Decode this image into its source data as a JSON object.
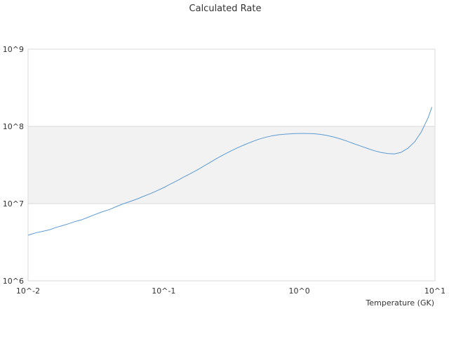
{
  "chart_data": {
    "type": "line",
    "title": "Calculated Rate",
    "xlabel": "Temperature (GK)",
    "ylabel": "",
    "xscale": "log",
    "yscale": "log",
    "xlim": [
      0.01,
      10
    ],
    "ylim": [
      1000000,
      1000000000
    ],
    "x_ticks": [
      "10^-2",
      "10^-1",
      "10^0",
      "10^1"
    ],
    "y_ticks": [
      "10^6",
      "10^7",
      "10^8",
      "10^9"
    ],
    "highlight_band": {
      "from": 10000000,
      "to": 100000000,
      "color": "#f2f2f2"
    },
    "line_color": "#5b9bd5",
    "series": [
      {
        "x": [
          0.01,
          0.0105,
          0.0115,
          0.013,
          0.0145,
          0.016,
          0.018,
          0.02,
          0.0225,
          0.025,
          0.028,
          0.031,
          0.035,
          0.04,
          0.045,
          0.05,
          0.056,
          0.063,
          0.07,
          0.08,
          0.09,
          0.1,
          0.11,
          0.125,
          0.14,
          0.16,
          0.18,
          0.2,
          0.225,
          0.25,
          0.28,
          0.32,
          0.36,
          0.4,
          0.45,
          0.5,
          0.56,
          0.63,
          0.71,
          0.8,
          0.9,
          1.0,
          1.12,
          1.26,
          1.41,
          1.58,
          1.78,
          2.0,
          2.24,
          2.5,
          2.8,
          3.16,
          3.55,
          4.0,
          4.47,
          5.0,
          5.62,
          6.31,
          7.08,
          7.94,
          8.91,
          9.5
        ],
        "y": [
          3900000.0,
          4000000.0,
          4200000.0,
          4400000.0,
          4600000.0,
          4900000.0,
          5200000.0,
          5500000.0,
          5900000.0,
          6200000.0,
          6700000.0,
          7200000.0,
          7800000.0,
          8400000.0,
          9200000.0,
          9900000.0,
          10600000.0,
          11400000.0,
          12300000.0,
          13500000.0,
          14800000.0,
          16100000.0,
          17600000.0,
          19700000.0,
          22000000.0,
          24800000.0,
          27800000.0,
          31000000.0,
          35000000.0,
          39000000.0,
          43500000.0,
          49000000.0,
          54000000.0,
          58500000.0,
          63500000.0,
          68000000.0,
          72000000.0,
          75500000.0,
          78000000.0,
          79500000.0,
          80500000.0,
          81000000.0,
          81000000.0,
          80500000.0,
          79000000.0,
          76500000.0,
          73000000.0,
          69000000.0,
          64500000.0,
          60000000.0,
          56000000.0,
          52000000.0,
          48500000.0,
          46000000.0,
          44500000.0,
          44000000.0,
          46000000.0,
          52000000.0,
          63000000.0,
          85000000.0,
          130000000.0,
          178000000.0
        ]
      }
    ]
  }
}
